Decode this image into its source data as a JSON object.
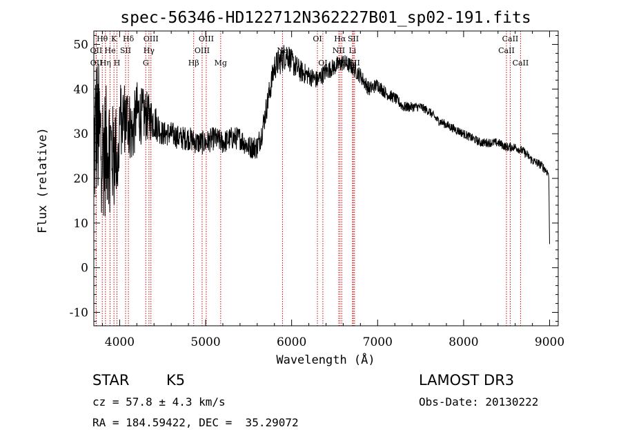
{
  "chart_data": {
    "type": "line",
    "title": "spec-56346-HD122712N362227B01_sp02-191.fits",
    "xlabel": "Wavelength (Å)",
    "ylabel": "Flux (relative)",
    "xlim": [
      3700,
      9100
    ],
    "ylim": [
      -13,
      53
    ],
    "x_ticks": [
      4000,
      5000,
      6000,
      7000,
      8000,
      9000
    ],
    "y_ticks": [
      -10,
      0,
      10,
      20,
      30,
      40,
      50
    ],
    "series": [
      {
        "name": "flux",
        "anchors_x": [
          3700,
          3725,
          3750,
          3780,
          3800,
          3830,
          3860,
          3890,
          3920,
          3950,
          3980,
          4000,
          4050,
          4100,
          4150,
          4200,
          4250,
          4300,
          4400,
          4500,
          4600,
          4700,
          4800,
          4900,
          5000,
          5100,
          5200,
          5300,
          5400,
          5500,
          5600,
          5650,
          5700,
          5750,
          5800,
          5850,
          5900,
          5950,
          6000,
          6100,
          6200,
          6300,
          6400,
          6500,
          6600,
          6700,
          6800,
          6900,
          7000,
          7100,
          7200,
          7300,
          7400,
          7500,
          7600,
          7700,
          7800,
          7900,
          8000,
          8100,
          8200,
          8300,
          8400,
          8500,
          8600,
          8700,
          8800,
          8900,
          8950,
          8990,
          9000
        ],
        "anchors_y": [
          25,
          32,
          30,
          28,
          27,
          26,
          27,
          28,
          25,
          28,
          22,
          33,
          34,
          33,
          30,
          35,
          34,
          34,
          33,
          30,
          30,
          29,
          29,
          28,
          28,
          29,
          28,
          29,
          29,
          27,
          27,
          30,
          35,
          40,
          45,
          46,
          47,
          48,
          46,
          44,
          43,
          42,
          44,
          45,
          46,
          45,
          43,
          40,
          41,
          39,
          38,
          36,
          36,
          36,
          35,
          33,
          32,
          31,
          30,
          29,
          28,
          28,
          28,
          27,
          27,
          26,
          24,
          23,
          22,
          21,
          5
        ],
        "noise_profile_x": [
          3700,
          3800,
          4000,
          4300,
          4500,
          5500,
          5900,
          6200,
          6800,
          7100,
          7500,
          8500,
          9000
        ],
        "noise_profile_amp": [
          18,
          16,
          9,
          6,
          2.8,
          2.6,
          3.2,
          2.2,
          1.8,
          1.4,
          1.0,
          1.0,
          1.0
        ]
      }
    ],
    "spectral_lines": [
      {
        "label": "Hθ",
        "wavelength": 3798,
        "row": 1
      },
      {
        "label": "OII",
        "wavelength": 3727,
        "row": 2
      },
      {
        "label": "OII",
        "wavelength": 3729,
        "row": 3
      },
      {
        "label": "Hη",
        "wavelength": 3835,
        "row": 3
      },
      {
        "label": "K",
        "wavelength": 3934,
        "row": 1
      },
      {
        "label": "He",
        "wavelength": 3889,
        "row": 2
      },
      {
        "label": "SII",
        "wavelength": 4069,
        "row": 2
      },
      {
        "label": "H",
        "wavelength": 3969,
        "row": 3
      },
      {
        "label": "Hδ",
        "wavelength": 4102,
        "row": 1
      },
      {
        "label": "OIII",
        "wavelength": 4364,
        "row": 1
      },
      {
        "label": "Hγ",
        "wavelength": 4341,
        "row": 2
      },
      {
        "label": "G",
        "wavelength": 4304,
        "row": 3
      },
      {
        "label": "Hβ",
        "wavelength": 4861,
        "row": 3
      },
      {
        "label": "OIII",
        "wavelength": 4959,
        "row": 2
      },
      {
        "label": "OIII",
        "wavelength": 5007,
        "row": 1
      },
      {
        "label": "Mg",
        "wavelength": 5175,
        "row": 3
      },
      {
        "label": "Na",
        "wavelength": 5894,
        "row": 2
      },
      {
        "label": "OI",
        "wavelength": 6300,
        "row": 1
      },
      {
        "label": "OI",
        "wavelength": 6363,
        "row": 3
      },
      {
        "label": "Hα",
        "wavelength": 6563,
        "row": 1
      },
      {
        "label": "NII",
        "wavelength": 6548,
        "row": 2
      },
      {
        "label": "NII",
        "wavelength": 6583,
        "row": 3
      },
      {
        "label": "SII",
        "wavelength": 6717,
        "row": 1
      },
      {
        "label": "Li",
        "wavelength": 6708,
        "row": 2
      },
      {
        "label": "SII",
        "wavelength": 6731,
        "row": 3
      },
      {
        "label": "CaII",
        "wavelength": 8542,
        "row": 1
      },
      {
        "label": "CaII",
        "wavelength": 8498,
        "row": 2
      },
      {
        "label": "CaII",
        "wavelength": 8662,
        "row": 3
      }
    ],
    "line_color": "#000000",
    "marker_color": "#cc0000"
  },
  "info": {
    "object_class": "STAR",
    "subclass": "K5",
    "survey": "LAMOST DR3",
    "redshift_text": "cz = 57.8 ± 4.3 km/s",
    "obs_date_text": "Obs-Date: 20130222",
    "coords_text": "RA = 184.59422, DEC =  35.29072"
  }
}
